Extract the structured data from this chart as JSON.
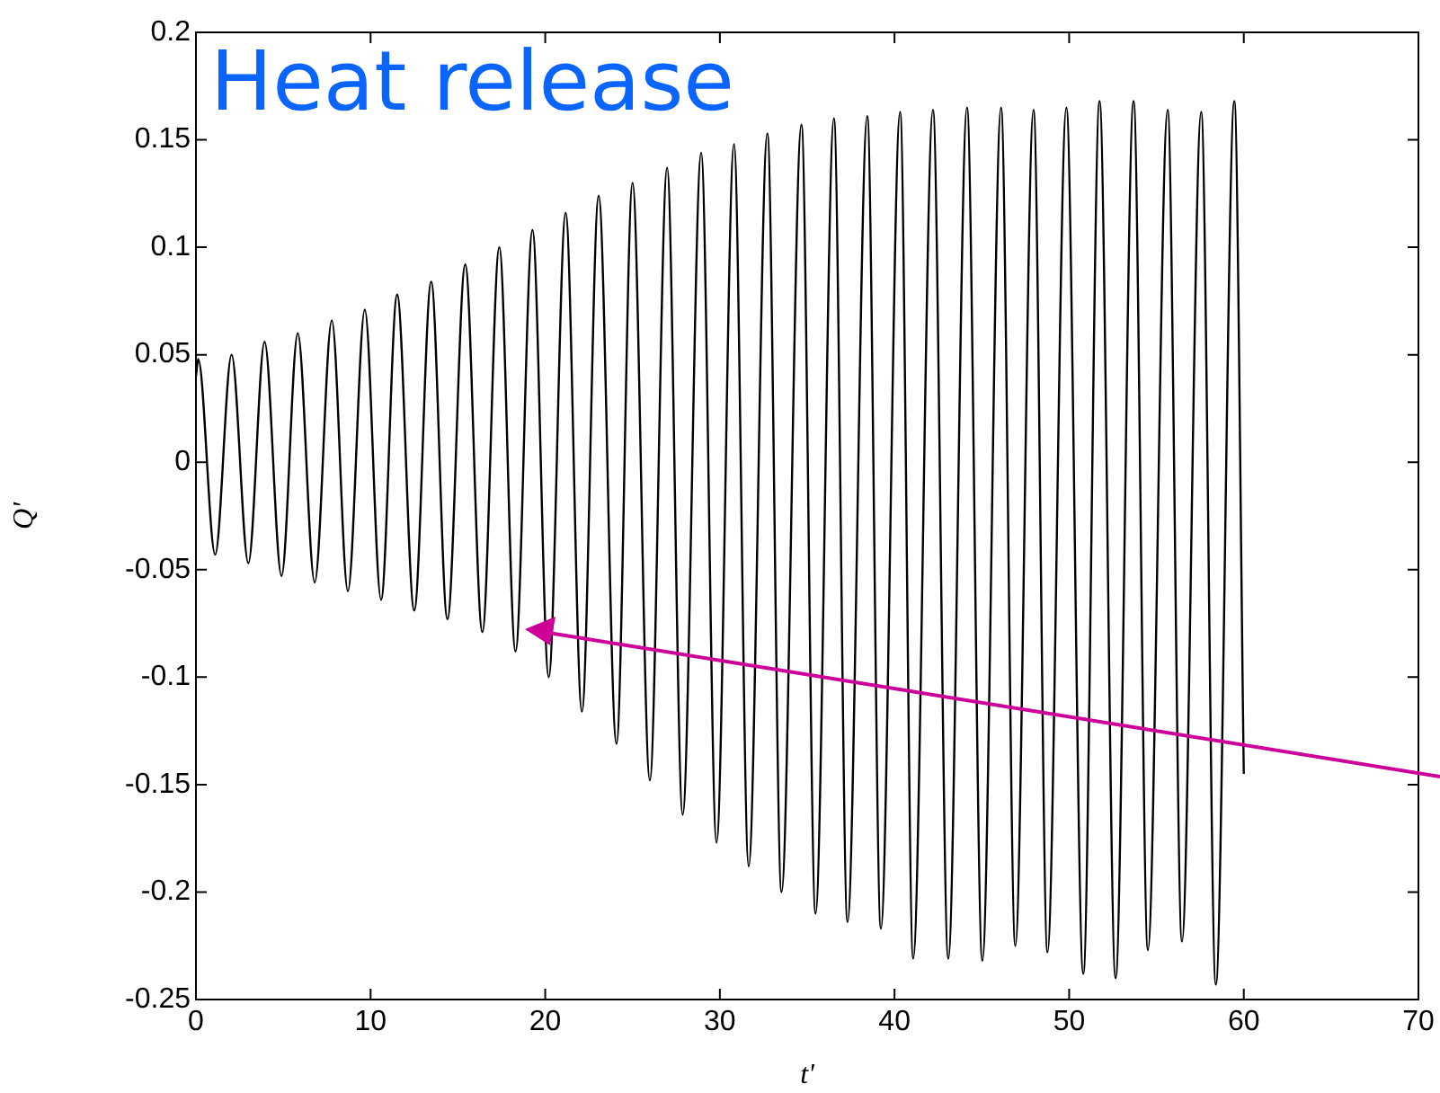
{
  "chart_data": {
    "type": "line",
    "xlabel": "t'",
    "ylabel": "Q'",
    "annotations": [
      "Heat release"
    ],
    "x": [
      0,
      0.13,
      1.1,
      2.04,
      3.0,
      3.93,
      4.9,
      5.83,
      6.8,
      7.78,
      8.7,
      9.67,
      10.6,
      11.52,
      12.5,
      13.47,
      14.4,
      15.42,
      16.4,
      17.37,
      18.3,
      19.27,
      20.2,
      21.17,
      22.1,
      23.06,
      24.08,
      25.0,
      25.99,
      26.98,
      27.87,
      28.93,
      29.81,
      30.81,
      31.65,
      32.72,
      33.53,
      34.67,
      35.48,
      36.53,
      37.31,
      38.44,
      39.22,
      40.32,
      41.07,
      42.2,
      43.08,
      44.15,
      45.03,
      46.1,
      46.92,
      47.96,
      48.76,
      49.84,
      50.81,
      51.74,
      52.66,
      53.69,
      54.51,
      55.64,
      56.46,
      57.56,
      58.4,
      59.46,
      60.0
    ],
    "series": [
      {
        "color": "#000000",
        "values": [
          0.04,
          0.048,
          -0.043,
          0.05,
          -0.047,
          0.056,
          -0.053,
          0.06,
          -0.056,
          0.066,
          -0.06,
          0.071,
          -0.064,
          0.078,
          -0.069,
          0.084,
          -0.073,
          0.092,
          -0.079,
          0.1,
          -0.088,
          0.108,
          -0.1,
          0.116,
          -0.116,
          0.124,
          -0.131,
          0.13,
          -0.148,
          0.137,
          -0.164,
          0.144,
          -0.177,
          0.148,
          -0.188,
          0.153,
          -0.2,
          0.157,
          -0.21,
          0.16,
          -0.214,
          0.161,
          -0.217,
          0.163,
          -0.231,
          0.164,
          -0.231,
          0.165,
          -0.232,
          0.165,
          -0.225,
          0.164,
          -0.228,
          0.165,
          -0.238,
          0.168,
          -0.24,
          0.168,
          -0.227,
          0.164,
          -0.223,
          0.163,
          -0.243,
          0.168,
          -0.145
        ]
      }
    ],
    "xlim": [
      0,
      70
    ],
    "xticks": [
      0,
      10,
      20,
      30,
      40,
      50,
      60,
      70
    ],
    "ylim": [
      -0.25,
      0.2
    ],
    "yticks": [
      -0.25,
      -0.2,
      -0.15,
      -0.1,
      -0.05,
      0,
      0.05,
      0.1,
      0.15,
      0.2
    ],
    "grid": false,
    "legend": false,
    "marker": "none",
    "line_style": "solid"
  }
}
